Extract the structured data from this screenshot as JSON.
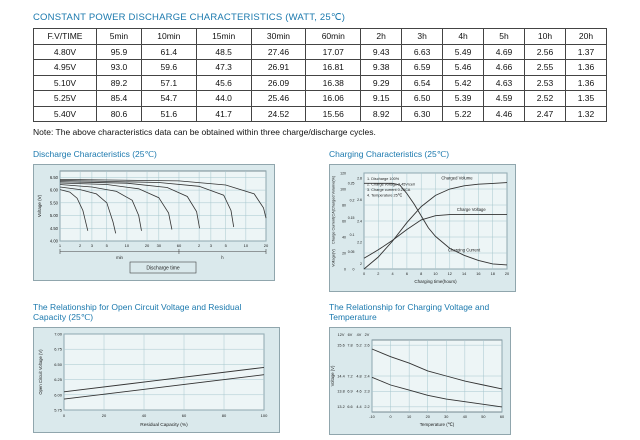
{
  "page": {
    "title": "CONSTANT POWER DISCHARGE CHARACTERISTICS (WATT, 25℃)",
    "note": "Note: The above characteristics data can be obtained within three charge/discharge cycles."
  },
  "table": {
    "columns": [
      "F.V/TIME",
      "5min",
      "10min",
      "15min",
      "30min",
      "60min",
      "2h",
      "3h",
      "4h",
      "5h",
      "10h",
      "20h"
    ],
    "rows": [
      {
        "fv": "4.80V",
        "values": [
          "95.9",
          "61.4",
          "48.5",
          "27.46",
          "17.07",
          "9.43",
          "6.63",
          "5.49",
          "4.69",
          "2.56",
          "1.37"
        ]
      },
      {
        "fv": "4.95V",
        "values": [
          "93.0",
          "59.6",
          "47.3",
          "26.91",
          "16.81",
          "9.38",
          "6.59",
          "5.46",
          "4.66",
          "2.55",
          "1.36"
        ]
      },
      {
        "fv": "5.10V",
        "values": [
          "89.2",
          "57.1",
          "45.6",
          "26.09",
          "16.38",
          "9.29",
          "6.54",
          "5.42",
          "4.63",
          "2.53",
          "1.36"
        ]
      },
      {
        "fv": "5.25V",
        "values": [
          "85.4",
          "54.7",
          "44.0",
          "25.46",
          "16.06",
          "9.15",
          "6.50",
          "5.39",
          "4.59",
          "2.52",
          "1.35"
        ]
      },
      {
        "fv": "5.40V",
        "values": [
          "80.6",
          "51.6",
          "41.7",
          "24.52",
          "15.56",
          "8.92",
          "6.30",
          "5.22",
          "4.46",
          "2.47",
          "1.32"
        ]
      }
    ]
  },
  "chart_data": [
    {
      "id": "discharge",
      "type": "line",
      "title": "Discharge Characteristics (25℃)",
      "ylabel": "Voltage (V)",
      "xlabel": "Discharge time",
      "x_unit_labels": [
        "min",
        "h"
      ],
      "ylim": [
        4.0,
        6.75
      ],
      "y_ticks": [
        6.5,
        6.0,
        5.5,
        5.0,
        4.5,
        4.0
      ],
      "x_ticks_min": [
        1,
        2,
        3,
        5,
        10,
        20,
        30,
        60
      ],
      "x_ticks_h": [
        2,
        3,
        5,
        10,
        20
      ],
      "x_log_range": [
        1,
        1200
      ],
      "series": [
        {
          "name": "rate-curve-1",
          "points": [
            [
              1,
              6.02
            ],
            [
              1.4,
              5.92
            ],
            [
              1.8,
              5.68
            ],
            [
              2.2,
              5.2
            ],
            [
              2.6,
              4.4
            ]
          ]
        },
        {
          "name": "rate-curve-2",
          "points": [
            [
              1,
              6.12
            ],
            [
              2,
              6.02
            ],
            [
              3.5,
              5.85
            ],
            [
              5,
              5.5
            ],
            [
              6.2,
              4.75
            ],
            [
              6.8,
              4.3
            ]
          ]
        },
        {
          "name": "rate-curve-3",
          "points": [
            [
              1,
              6.22
            ],
            [
              3,
              6.12
            ],
            [
              7,
              5.95
            ],
            [
              12,
              5.6
            ],
            [
              15,
              5.0
            ],
            [
              16.5,
              4.4
            ]
          ]
        },
        {
          "name": "rate-curve-4",
          "points": [
            [
              1,
              6.28
            ],
            [
              5,
              6.22
            ],
            [
              15,
              6.05
            ],
            [
              30,
              5.7
            ],
            [
              42,
              5.1
            ],
            [
              47,
              4.45
            ]
          ]
        },
        {
          "name": "rate-curve-5",
          "points": [
            [
              1,
              6.33
            ],
            [
              10,
              6.27
            ],
            [
              40,
              6.1
            ],
            [
              80,
              5.75
            ],
            [
              110,
              5.15
            ],
            [
              122,
              4.5
            ]
          ]
        },
        {
          "name": "rate-curve-6",
          "points": [
            [
              1,
              6.38
            ],
            [
              30,
              6.3
            ],
            [
              120,
              6.15
            ],
            [
              280,
              5.8
            ],
            [
              360,
              5.2
            ],
            [
              395,
              4.55
            ]
          ]
        },
        {
          "name": "rate-curve-7",
          "points": [
            [
              1,
              6.42
            ],
            [
              60,
              6.36
            ],
            [
              300,
              6.2
            ],
            [
              800,
              5.85
            ],
            [
              1100,
              5.3
            ],
            [
              1200,
              4.9
            ]
          ]
        }
      ]
    },
    {
      "id": "charging",
      "type": "line",
      "title": "Charging Characteristics (25℃)",
      "xlabel": "Charging time(hours)",
      "x_ticks": [
        0,
        2,
        4,
        6,
        8,
        10,
        12,
        14,
        16,
        18,
        20
      ],
      "axes": {
        "volume": {
          "label": "Charged Volume(%)",
          "ticks": [
            120,
            100,
            80,
            60,
            40,
            20,
            0
          ]
        },
        "current": {
          "label": "Charge Current(CA)",
          "ticks": [
            0.25,
            0.2,
            0.15,
            0.1,
            0.05,
            0
          ]
        },
        "voltage": {
          "label": "Voltage(V)",
          "ticks": [
            2.8,
            2.6,
            2.4,
            2.2,
            2.0
          ]
        }
      },
      "legend": [
        "1. Discharge 100%",
        "2. Charge voltage 2.45V/cell",
        "3. Charge current 0.25CA",
        "4. Temperature 25℃"
      ],
      "annotations": [
        "Charged Volume",
        "Charge Voltage",
        "Charging Current"
      ],
      "series": [
        {
          "name": "charged-volume",
          "axis": "volume",
          "points": [
            [
              0,
              0
            ],
            [
              2,
              15
            ],
            [
              4,
              35
            ],
            [
              6,
              58
            ],
            [
              8,
              78
            ],
            [
              10,
              92
            ],
            [
              12,
              100
            ],
            [
              14,
              104
            ],
            [
              16,
              106
            ],
            [
              18,
              107
            ],
            [
              20,
              108
            ]
          ]
        },
        {
          "name": "charge-voltage",
          "axis": "voltage",
          "points": [
            [
              0,
              2.05
            ],
            [
              2,
              2.13
            ],
            [
              4,
              2.22
            ],
            [
              6,
              2.32
            ],
            [
              8,
              2.41
            ],
            [
              10,
              2.45
            ],
            [
              12,
              2.46
            ],
            [
              20,
              2.46
            ]
          ]
        },
        {
          "name": "charging-current",
          "axis": "current",
          "points": [
            [
              0,
              0.25
            ],
            [
              4,
              0.25
            ],
            [
              5,
              0.245
            ],
            [
              6,
              0.22
            ],
            [
              7,
              0.19
            ],
            [
              8,
              0.155
            ],
            [
              9,
              0.12
            ],
            [
              10,
              0.095
            ],
            [
              12,
              0.06
            ],
            [
              14,
              0.04
            ],
            [
              16,
              0.025
            ],
            [
              18,
              0.015
            ],
            [
              20,
              0.012
            ]
          ]
        }
      ]
    },
    {
      "id": "ocv",
      "type": "line",
      "title": "The Relationship for Open Circuit Voltage and Residual Capacity (25℃)",
      "ylabel": "Open Circuit Voltage (V)",
      "xlabel": "Residual Capacity (%)",
      "ylim": [
        5.75,
        7.0
      ],
      "y_ticks": [
        7.0,
        6.75,
        6.5,
        6.25,
        6.0,
        5.75
      ],
      "x_ticks": [
        0,
        20,
        40,
        60,
        80,
        100
      ],
      "series": [
        {
          "name": "upper-line",
          "points": [
            [
              0,
              6.05
            ],
            [
              100,
              6.45
            ]
          ]
        },
        {
          "name": "lower-line",
          "points": [
            [
              0,
              5.93
            ],
            [
              100,
              6.33
            ]
          ]
        }
      ]
    },
    {
      "id": "charge-temp",
      "type": "line",
      "title": "The Relationship for Charging Voltage and Temperature",
      "ylabel": "Voltage (V)",
      "xlabel": "Temperature (℃)",
      "x_ticks": [
        -10,
        0,
        10,
        20,
        30,
        40,
        50,
        60
      ],
      "ylim_12v": [
        13.0,
        15.8
      ],
      "scale_headers": [
        "12V",
        "6V",
        "4V",
        "2V"
      ],
      "scale_rows": [
        [
          "15.6",
          "7.8",
          "5.2",
          "2.6"
        ],
        [
          "14.4",
          "7.2",
          "4.8",
          "2.4"
        ],
        [
          "13.8",
          "6.9",
          "4.6",
          "2.3"
        ],
        [
          "13.2",
          "6.6",
          "4.4",
          "2.2"
        ]
      ],
      "series": [
        {
          "name": "cycle-use",
          "points": [
            [
              -10,
              15.45
            ],
            [
              0,
              15.15
            ],
            [
              10,
              14.9
            ],
            [
              20,
              14.6
            ],
            [
              30,
              14.4
            ],
            [
              40,
              14.2
            ],
            [
              50,
              14.05
            ],
            [
              60,
              13.9
            ]
          ]
        },
        {
          "name": "float-use",
          "points": [
            [
              -10,
              14.35
            ],
            [
              0,
              14.05
            ],
            [
              10,
              13.85
            ],
            [
              20,
              13.65
            ],
            [
              30,
              13.5
            ],
            [
              40,
              13.4
            ],
            [
              50,
              13.3
            ],
            [
              60,
              13.2
            ]
          ]
        }
      ]
    }
  ]
}
